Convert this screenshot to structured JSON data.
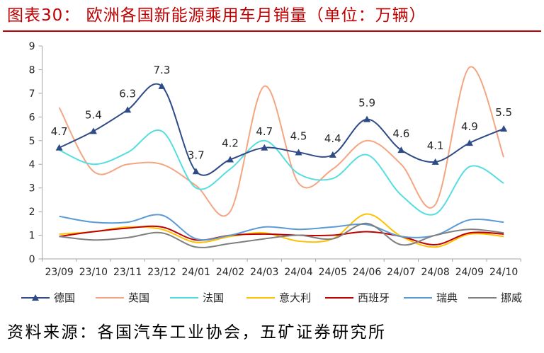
{
  "chart_data": {
    "type": "line",
    "title": "图表30： 欧洲各国新能源乘用车月销量（单位：万辆）",
    "categories": [
      "23/09",
      "23/10",
      "23/11",
      "23/12",
      "24/01",
      "24/02",
      "24/03",
      "24/04",
      "24/05",
      "24/06",
      "24/07",
      "24/08",
      "24/09",
      "24/10"
    ],
    "ylim": [
      0,
      9
    ],
    "yticks": [
      0,
      1,
      2,
      3,
      4,
      5,
      6,
      7,
      8,
      9
    ],
    "grid": false,
    "smooth": true,
    "legend_position": "bottom",
    "series": [
      {
        "name": "德国",
        "color": "#2E4A87",
        "marker": "triangle",
        "data_labels": true,
        "values": [
          4.7,
          5.4,
          6.3,
          7.3,
          3.7,
          4.2,
          4.7,
          4.5,
          4.4,
          5.9,
          4.6,
          4.1,
          4.9,
          5.5
        ]
      },
      {
        "name": "英国",
        "color": "#F4A582",
        "values": [
          6.4,
          3.7,
          4.0,
          4.0,
          3.1,
          2.0,
          7.3,
          3.2,
          3.8,
          5.0,
          4.0,
          2.3,
          8.1,
          4.3
        ]
      },
      {
        "name": "法国",
        "color": "#55DDE0",
        "values": [
          4.6,
          4.0,
          4.5,
          5.4,
          3.0,
          3.8,
          5.0,
          3.6,
          3.4,
          4.4,
          2.7,
          1.9,
          3.9,
          3.2
        ]
      },
      {
        "name": "意大利",
        "color": "#FFC000",
        "values": [
          1.05,
          1.15,
          1.35,
          1.25,
          0.7,
          0.95,
          1.1,
          0.75,
          0.85,
          1.9,
          0.95,
          0.5,
          1.05,
          0.95
        ]
      },
      {
        "name": "西班牙",
        "color": "#C00000",
        "values": [
          0.95,
          1.15,
          1.3,
          1.35,
          0.8,
          1.0,
          1.05,
          1.0,
          1.0,
          1.15,
          0.95,
          0.6,
          1.1,
          1.05
        ]
      },
      {
        "name": "瑞典",
        "color": "#5B9BD5",
        "values": [
          1.8,
          1.55,
          1.55,
          1.85,
          0.85,
          1.0,
          1.35,
          1.25,
          1.35,
          1.45,
          0.95,
          1.0,
          1.65,
          1.55
        ]
      },
      {
        "name": "挪威",
        "color": "#7F7F7F",
        "values": [
          0.95,
          0.8,
          0.9,
          1.1,
          0.5,
          0.65,
          0.85,
          1.0,
          0.85,
          1.5,
          0.6,
          1.0,
          1.25,
          1.1
        ]
      }
    ]
  },
  "source": "资料来源：各国汽车工业协会，五矿证券研究所",
  "colors": {
    "title": "#C00000"
  }
}
